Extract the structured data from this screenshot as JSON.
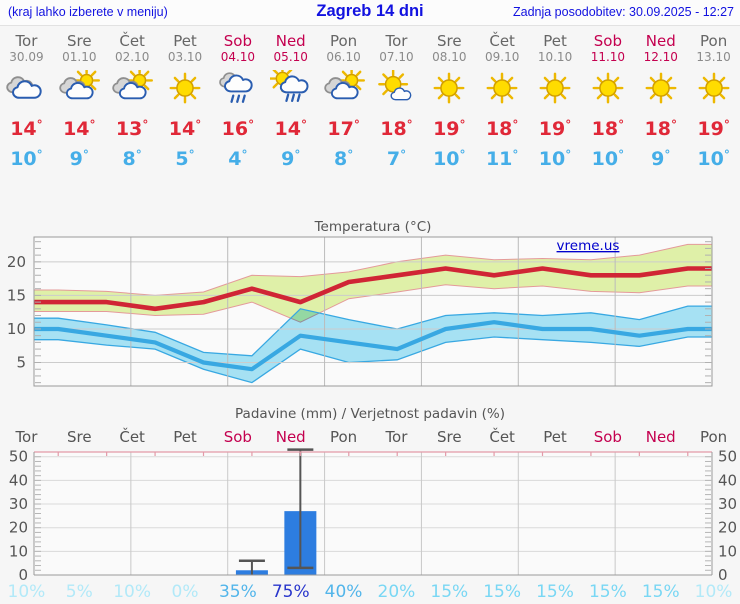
{
  "header": {
    "left_note": "(kraj lahko izberete v meniju)",
    "title": "Zagreb 14 dni",
    "updated": "Zadnja posodobitev: 30.09.2025 - 12:27"
  },
  "colors": {
    "header_text": "#1212e0",
    "weekday": "#666666",
    "weekday_date": "#8a8a8a",
    "weekend": "#c4004f",
    "high_temp": "#e02838",
    "low_temp": "#45aee8",
    "max_line": "#d02535",
    "max_band": "#dff0a8",
    "max_band_edge": "#e49a9a",
    "min_line": "#38a8e2",
    "min_band": "#a9e6f8",
    "bar": "#2d7de0",
    "whisker": "#555555",
    "grid": "#cccccc",
    "frame": "#999999",
    "axis_text": "#555555",
    "pink_axis": "#e39aa8",
    "watermark": "#0000cc",
    "prob_tier_75": "#2936cc",
    "prob_tier_35": "#52b5ea",
    "prob_tier_15": "#79d7f4",
    "prob_tier_0": "#b2e9f8"
  },
  "forecast": {
    "days": [
      {
        "name": "Tor",
        "date": "30.09",
        "weekend": false,
        "icon": "cloudy",
        "high": 14,
        "low": 10
      },
      {
        "name": "Sre",
        "date": "01.10",
        "weekend": false,
        "icon": "sun-cloud",
        "high": 14,
        "low": 9
      },
      {
        "name": "Čet",
        "date": "02.10",
        "weekend": false,
        "icon": "sun-cloud",
        "high": 13,
        "low": 8
      },
      {
        "name": "Pet",
        "date": "03.10",
        "weekend": false,
        "icon": "sunny",
        "high": 14,
        "low": 5
      },
      {
        "name": "Sob",
        "date": "04.10",
        "weekend": true,
        "icon": "rain",
        "high": 16,
        "low": 4
      },
      {
        "name": "Ned",
        "date": "05.10",
        "weekend": true,
        "icon": "sun-rain",
        "high": 14,
        "low": 9
      },
      {
        "name": "Pon",
        "date": "06.10",
        "weekend": false,
        "icon": "sun-cloud",
        "high": 17,
        "low": 8
      },
      {
        "name": "Tor",
        "date": "07.10",
        "weekend": false,
        "icon": "sunny-small-cloud",
        "high": 18,
        "low": 7
      },
      {
        "name": "Sre",
        "date": "08.10",
        "weekend": false,
        "icon": "sunny",
        "high": 19,
        "low": 10
      },
      {
        "name": "Čet",
        "date": "09.10",
        "weekend": false,
        "icon": "sunny",
        "high": 18,
        "low": 11
      },
      {
        "name": "Pet",
        "date": "10.10",
        "weekend": false,
        "icon": "sunny",
        "high": 19,
        "low": 10
      },
      {
        "name": "Sob",
        "date": "11.10",
        "weekend": true,
        "icon": "sunny",
        "high": 18,
        "low": 10
      },
      {
        "name": "Ned",
        "date": "12.10",
        "weekend": true,
        "icon": "sunny",
        "high": 18,
        "low": 9
      },
      {
        "name": "Pon",
        "date": "13.10",
        "weekend": false,
        "icon": "sunny",
        "high": 19,
        "low": 10
      }
    ]
  },
  "chart_data": [
    {
      "type": "line",
      "title": "Temperatura (°C)",
      "watermark": "vreme.us",
      "ylim": [
        1.5,
        23.7
      ],
      "yticks": [
        5,
        10,
        15,
        20
      ],
      "grid": true,
      "series": [
        {
          "name": "max",
          "values": [
            14,
            14,
            13,
            14,
            16,
            14,
            17,
            18,
            19,
            18,
            19,
            18,
            18,
            19
          ]
        },
        {
          "name": "max_range_upper",
          "values": [
            15.8,
            15.6,
            15,
            15.5,
            18,
            17.8,
            18.5,
            20,
            21,
            20.3,
            20.5,
            20.3,
            21,
            22.6
          ]
        },
        {
          "name": "max_range_lower",
          "values": [
            12.6,
            12.6,
            12,
            12.2,
            14,
            11,
            14.5,
            15.5,
            16.6,
            16,
            16.4,
            15.6,
            15.4,
            16.4
          ]
        },
        {
          "name": "min",
          "values": [
            10,
            9,
            8,
            5,
            4,
            9,
            8,
            7,
            10,
            11,
            10,
            10,
            9,
            10
          ]
        },
        {
          "name": "min_range_upper",
          "values": [
            11.6,
            10.6,
            9.5,
            6.5,
            6,
            13,
            11.4,
            10,
            12,
            12.4,
            12,
            12.4,
            11.4,
            13.4
          ]
        },
        {
          "name": "min_range_lower",
          "values": [
            8.4,
            7.6,
            7,
            4,
            2,
            7,
            5,
            5.4,
            8,
            8.8,
            8.4,
            8,
            7.4,
            8.8
          ]
        }
      ]
    },
    {
      "type": "bar",
      "title": "Padavine (mm) / Verjetnost padavin (%)",
      "categories": [
        "Tor",
        "Sre",
        "Čet",
        "Pet",
        "Sob",
        "Ned",
        "Pon",
        "Tor",
        "Sre",
        "Čet",
        "Pet",
        "Sob",
        "Ned",
        "Pon"
      ],
      "weekend_indices": [
        4,
        5,
        11,
        12
      ],
      "values": [
        0,
        0,
        0,
        0,
        2,
        27,
        0,
        0,
        0,
        0,
        0,
        0,
        0,
        0
      ],
      "whisker_low": [
        null,
        null,
        null,
        null,
        0,
        3,
        null,
        null,
        null,
        null,
        null,
        null,
        null,
        null
      ],
      "whisker_high": [
        null,
        null,
        null,
        null,
        6,
        53,
        null,
        null,
        null,
        null,
        null,
        null,
        null,
        null
      ],
      "probabilities": [
        10,
        5,
        10,
        0,
        35,
        75,
        40,
        20,
        15,
        15,
        15,
        15,
        15,
        10
      ],
      "probability_suffix": "%",
      "ylim": [
        0,
        52
      ],
      "yticks": [
        0,
        10,
        20,
        30,
        40,
        50
      ]
    }
  ]
}
